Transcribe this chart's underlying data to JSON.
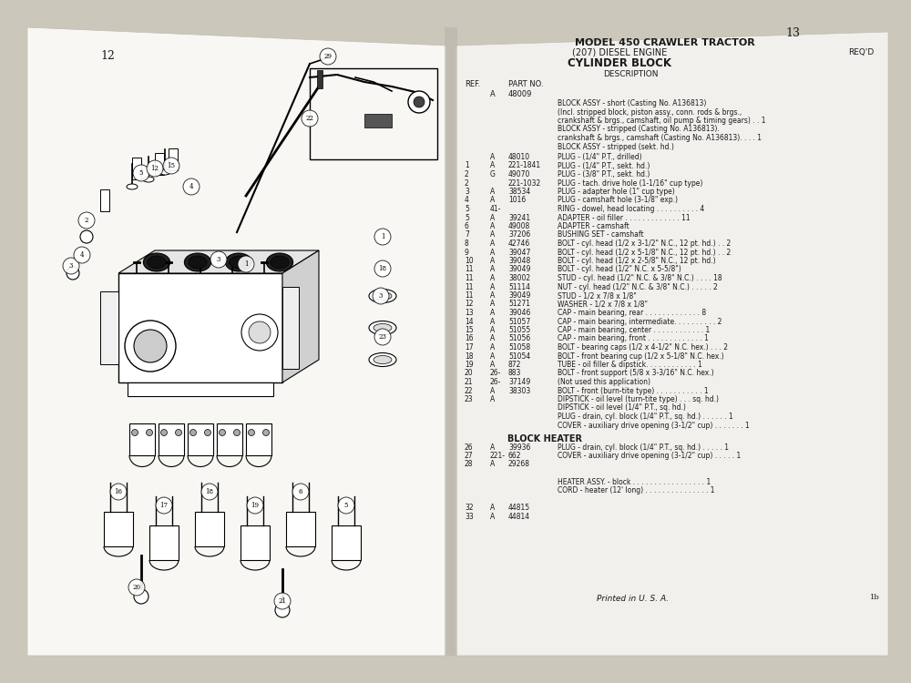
{
  "bg_outer": "#cbc7bb",
  "bg_left_page": "#f8f7f3",
  "bg_right_page": "#f2f0ec",
  "shadow_color": "#b0ac9f",
  "page_left_num": "12",
  "page_right_num": "13",
  "title_line1": "MODEL 450 CRAWLER TRACTOR",
  "title_line2": "(207) DIESEL ENGINE",
  "title_line3": "CYLINDER BLOCK",
  "req_label": "REQ'D",
  "printed": "Printed in U. S. A.",
  "parts_rows": [
    [
      "",
      "A",
      "48010",
      "PLUG - (1/4\" P.T., drilled)"
    ],
    [
      "1",
      "A",
      "221-1841",
      "PLUG - (1/4\" P.T., sekt. hd.)"
    ],
    [
      "2",
      "G",
      "49070",
      "PLUG - (3/8\" P.T., sekt. hd.)"
    ],
    [
      "2",
      "",
      "221-1032",
      "PLUG - tach. drive hole (1-1/16\" cup type)"
    ],
    [
      "3",
      "A",
      "38534",
      "PLUG - adapter hole (1\" cup type)"
    ],
    [
      "4",
      "A",
      "1016",
      "PLUG - camshaft hole (3-1/8\" exp.)"
    ],
    [
      "5",
      "41-",
      "",
      "RING - dowel, head locating . . . . . . . . . . 4"
    ],
    [
      "5",
      "A",
      "39241",
      "ADAPTER - oil filler . . . . . . . . . . . . . 11"
    ],
    [
      "6",
      "A",
      "49008",
      "ADAPTER - camshaft"
    ],
    [
      "7",
      "A",
      "37206",
      "BUSHING SET - camshaft"
    ],
    [
      "8",
      "A",
      "42746",
      "BOLT - cyl. head (1/2 x 3-1/2\" N.C., 12 pt. hd.) . . 2"
    ],
    [
      "9",
      "A",
      "39047",
      "BOLT - cyl. head (1/2 x 5-1/8\" N.C., 12 pt. hd.) . . 2"
    ],
    [
      "10",
      "A",
      "39048",
      "BOLT - cyl. head (1/2 x 2-5/8\" N.C., 12 pt. hd.)"
    ],
    [
      "11",
      "A",
      "39049",
      "BOLT - cyl. head (1/2\" N.C. x 5-5/8\")"
    ],
    [
      "11",
      "A",
      "38002",
      "STUD - cyl. head (1/2\" N.C. & 3/8\" N.C.) . . . . 18"
    ],
    [
      "11",
      "A",
      "51114",
      "NUT - cyl. head (1/2\" N.C. & 3/8\" N.C.) . . . . . 2"
    ],
    [
      "11",
      "A",
      "39049",
      "STUD - 1/2 x 7/8 x 1/8\""
    ],
    [
      "12",
      "A",
      "51271",
      "WASHER - 1/2 x 7/8 x 1/8\""
    ],
    [
      "13",
      "A",
      "39046",
      "CAP - main bearing, rear . . . . . . . . . . . . . 8"
    ],
    [
      "14",
      "A",
      "51057",
      "CAP - main bearing, intermediate. . . . . . . . . . 2"
    ],
    [
      "15",
      "A",
      "51055",
      "CAP - main bearing, center . . . . . . . . . . . . 1"
    ],
    [
      "16",
      "A",
      "51056",
      "CAP - main bearing, front . . . . . . . . . . . . . 1"
    ],
    [
      "17",
      "A",
      "51058",
      "BOLT - bearing caps (1/2 x 4-1/2\" N.C. hex.) . . . 2"
    ],
    [
      "18",
      "A",
      "51054",
      "BOLT - front bearing cup (1/2 x 5-1/8\" N.C. hex.)"
    ],
    [
      "19",
      "A",
      "872",
      "TUBE - oil filler & dipstick. . . . . . . . . . . . 1"
    ],
    [
      "20",
      "26-",
      "883",
      "BOLT - front support (5/8 x 3-3/16\" N.C. hex.)"
    ],
    [
      "21",
      "26-",
      "37149",
      "(Not used this application)"
    ],
    [
      "22",
      "A",
      "38303",
      "BOLT - front (burn-tite type) . . . . . . . . . . . 1"
    ],
    [
      "23",
      "A",
      "",
      "DIPSTICK - oil level (turn-tite type) . . . sq. hd.)"
    ]
  ],
  "text_color": "#1a1a1a"
}
